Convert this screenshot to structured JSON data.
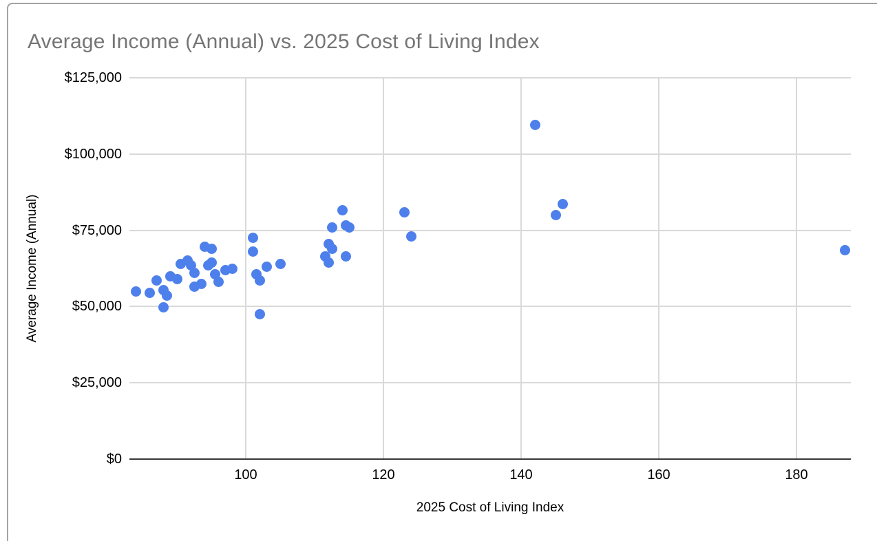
{
  "chart": {
    "title": "Average Income (Annual) vs. 2025 Cost of Living Index",
    "x_axis_title": "2025 Cost of Living Index",
    "y_axis_title": "Average Income (Annual)"
  },
  "colors": {
    "point": "#4e80ec",
    "title_text": "#757575",
    "axis_text": "#000000",
    "gridline": "#d9d9d9",
    "axis_line": "#383838",
    "card_border": "#a3a3a3"
  },
  "chart_data": {
    "type": "scatter",
    "title": "Average Income (Annual) vs. 2025 Cost of Living Index",
    "xlabel": "2025 Cost of Living Index",
    "ylabel": "Average Income (Annual)",
    "xlim": [
      83.1,
      187.9
    ],
    "ylim": [
      0,
      125000
    ],
    "grid": true,
    "legend": false,
    "x_ticks": [
      {
        "value": 100,
        "label": "100"
      },
      {
        "value": 120,
        "label": "120"
      },
      {
        "value": 140,
        "label": "140"
      },
      {
        "value": 160,
        "label": "160"
      },
      {
        "value": 180,
        "label": "180"
      }
    ],
    "y_ticks": [
      {
        "value": 0,
        "label": "$0"
      },
      {
        "value": 25000,
        "label": "$25,000"
      },
      {
        "value": 50000,
        "label": "$50,000"
      },
      {
        "value": 75000,
        "label": "$75,000"
      },
      {
        "value": 100000,
        "label": "$100,000"
      },
      {
        "value": 125000,
        "label": "$125,000"
      }
    ],
    "series": [
      {
        "name": "Average Income (Annual)",
        "points": [
          [
            84,
            55000
          ],
          [
            86,
            54500
          ],
          [
            87,
            58500
          ],
          [
            88,
            55500
          ],
          [
            88.5,
            53500
          ],
          [
            88,
            49700
          ],
          [
            89,
            60000
          ],
          [
            90,
            59000
          ],
          [
            90.5,
            64000
          ],
          [
            91.5,
            65000
          ],
          [
            92,
            63500
          ],
          [
            92.5,
            61000
          ],
          [
            92.5,
            56500
          ],
          [
            93.5,
            57500
          ],
          [
            94,
            69500
          ],
          [
            95,
            69000
          ],
          [
            94.5,
            63500
          ],
          [
            95,
            64500
          ],
          [
            95.5,
            60500
          ],
          [
            96,
            58000
          ],
          [
            97,
            62000
          ],
          [
            98,
            62500
          ],
          [
            101,
            72500
          ],
          [
            101,
            68000
          ],
          [
            101.5,
            60500
          ],
          [
            102,
            58500
          ],
          [
            103,
            63000
          ],
          [
            105,
            64000
          ],
          [
            102,
            47500
          ],
          [
            114,
            81500
          ],
          [
            112.5,
            76000
          ],
          [
            114.5,
            76500
          ],
          [
            115,
            76000
          ],
          [
            112,
            70500
          ],
          [
            112.5,
            69000
          ],
          [
            114.5,
            66500
          ],
          [
            111.5,
            66500
          ],
          [
            112,
            64500
          ],
          [
            123,
            81000
          ],
          [
            124,
            73000
          ],
          [
            142,
            109500
          ],
          [
            145,
            80000
          ],
          [
            146,
            83500
          ],
          [
            187,
            68500
          ]
        ]
      }
    ]
  }
}
